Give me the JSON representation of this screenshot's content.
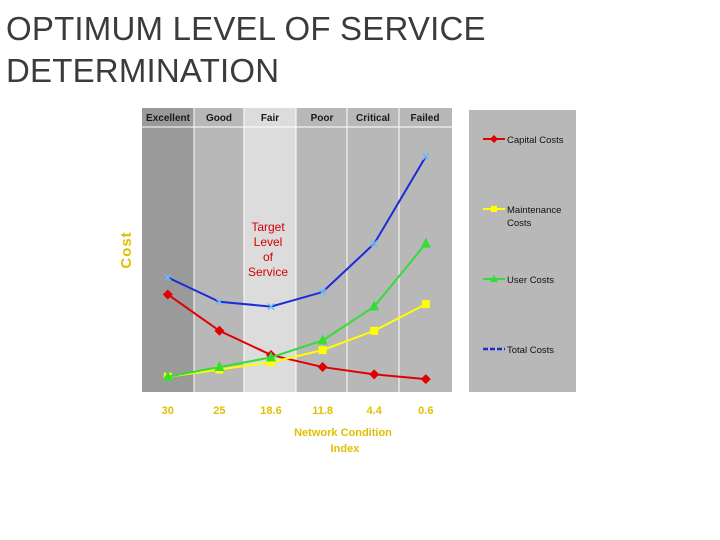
{
  "slide": {
    "title_line1": "OPTIMUM LEVEL OF SERVICE",
    "title_line2": "DETERMINATION"
  },
  "chart_data": {
    "type": "line",
    "title": "",
    "ylabel": "Cost",
    "xlabel_line1": "Network Condition",
    "xlabel_line2": "Index",
    "condition_bands": [
      "Excellent",
      "Good",
      "Fair",
      "Poor",
      "Critical",
      "Failed"
    ],
    "categories": [
      "30",
      "25",
      "18.6",
      "11.8",
      "4.4",
      "0.6"
    ],
    "ylim": [
      0,
      100
    ],
    "grid": false,
    "legend_placement": "right",
    "annotation": {
      "line1": "Target",
      "line2": "Level",
      "line3": "of",
      "line4": "Service",
      "color": "#d40000"
    },
    "highlighted_band": "Fair",
    "series": [
      {
        "name": "Capital Costs",
        "color": "#e00000",
        "marker": "diamond",
        "values": [
          37,
          22,
          12,
          7,
          4,
          2
        ]
      },
      {
        "name": "Maintenance Costs",
        "color": "#ffff00",
        "marker": "square",
        "values": [
          3,
          6,
          9,
          14,
          22,
          33
        ]
      },
      {
        "name": "User Costs",
        "color": "#33dd33",
        "marker": "triangle",
        "values": [
          3,
          7,
          11,
          18,
          32,
          58
        ]
      },
      {
        "name": "Total Costs",
        "color": "#1a2cd8",
        "marker": "x",
        "values": [
          44,
          34,
          32,
          38,
          58,
          94
        ]
      }
    ],
    "legend": {
      "capital": "Capital Costs",
      "maintenance_line1": "Maintenance",
      "maintenance_line2": "Costs",
      "user": "User Costs",
      "total": "Total Costs"
    }
  }
}
